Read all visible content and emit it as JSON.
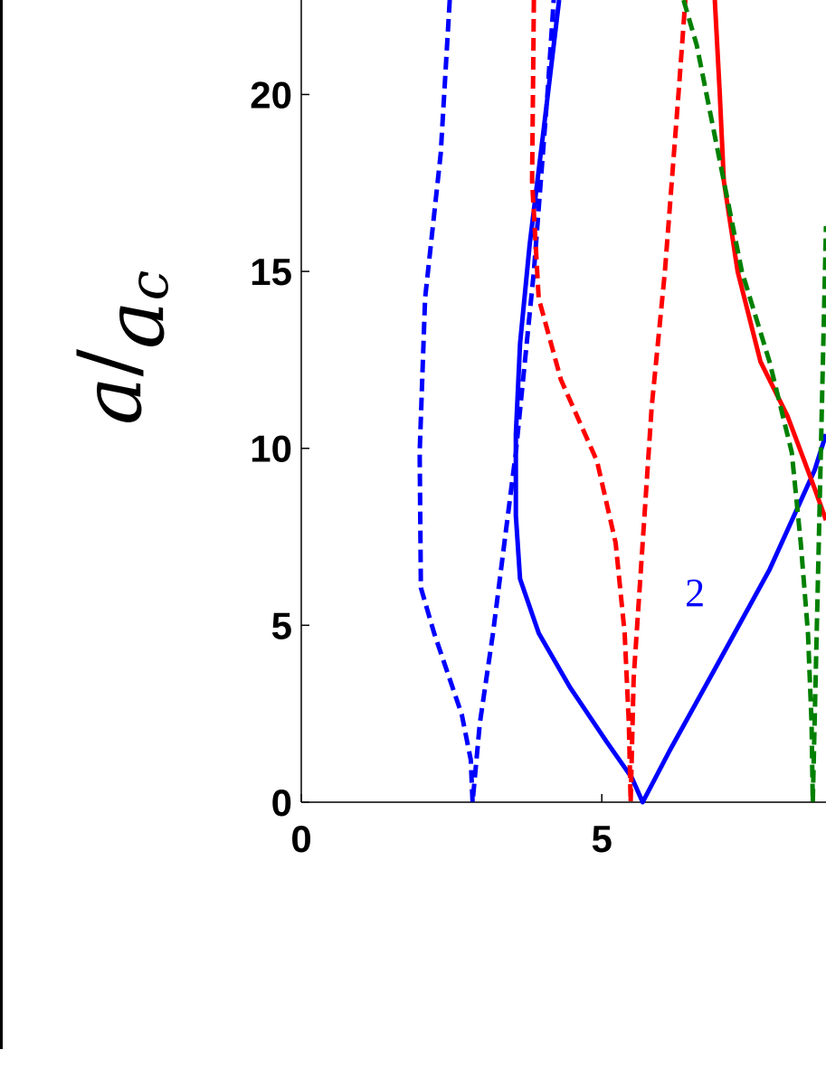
{
  "chart_data": {
    "type": "line",
    "ylabel": {
      "numerator": "a",
      "slash": "/",
      "denominator": "a",
      "subscript": "c"
    },
    "xlim": [
      0,
      8.73
    ],
    "ylim": [
      0,
      22.67
    ],
    "xticks": [
      0,
      5
    ],
    "yticks": [
      0,
      5,
      10,
      15,
      20
    ],
    "annotations": [
      {
        "text": "2",
        "x": 6.55,
        "y": 5.93,
        "color": "#0000ff"
      }
    ],
    "series": [
      {
        "color": "#0000ff",
        "dashed": true,
        "x": [
          2.47,
          2.32,
          2.06,
          1.97,
          1.99,
          2.21,
          2.67,
          2.82,
          2.85,
          2.97,
          3.19,
          3.57,
          3.87,
          4.1,
          4.2
        ],
        "values": [
          22.67,
          18.33,
          14.24,
          9.89,
          6.06,
          4.78,
          2.48,
          1.2,
          0,
          2.22,
          4.78,
          9.89,
          15.0,
          20.11,
          22.67
        ]
      },
      {
        "color": "#0000ff",
        "dashed": false,
        "x": [
          4.29,
          4.02,
          3.8,
          3.64,
          3.57,
          3.57,
          3.64,
          3.95,
          4.47,
          5.08,
          5.5,
          5.68,
          6.13,
          6.88,
          7.79,
          8.54,
          8.73
        ],
        "values": [
          22.67,
          18.83,
          15.76,
          12.96,
          10.4,
          8.1,
          6.31,
          4.78,
          3.25,
          1.71,
          0.69,
          0,
          1.46,
          3.76,
          6.57,
          9.38,
          10.4
        ]
      },
      {
        "color": "#ff0000",
        "dashed": true,
        "x": [
          3.87,
          3.84,
          3.95,
          4.32,
          4.92,
          5.23,
          5.38,
          5.45,
          5.48,
          5.53,
          5.68,
          5.83,
          6.05,
          6.28,
          6.39
        ],
        "values": [
          22.67,
          17.56,
          14.24,
          11.94,
          9.64,
          7.33,
          4.78,
          2.22,
          0,
          3.5,
          7.33,
          11.17,
          15.0,
          20.11,
          22.67
        ]
      },
      {
        "color": "#ff0000",
        "dashed": false,
        "x": [
          6.88,
          6.96,
          7.03,
          7.26,
          7.64,
          8.09,
          8.54,
          8.73
        ],
        "values": [
          22.67,
          20.11,
          17.56,
          15.0,
          12.45,
          10.91,
          8.87,
          7.97
        ]
      },
      {
        "color": "#008000",
        "dashed": true,
        "x": [
          6.36,
          6.58,
          6.88,
          7.33,
          7.79,
          8.16,
          8.31,
          8.43,
          8.49,
          8.51,
          8.61,
          8.73
        ],
        "values": [
          22.67,
          21.39,
          18.83,
          15.0,
          12.45,
          9.89,
          7.33,
          4.78,
          2.22,
          0,
          7.33,
          16.28
        ]
      }
    ]
  }
}
